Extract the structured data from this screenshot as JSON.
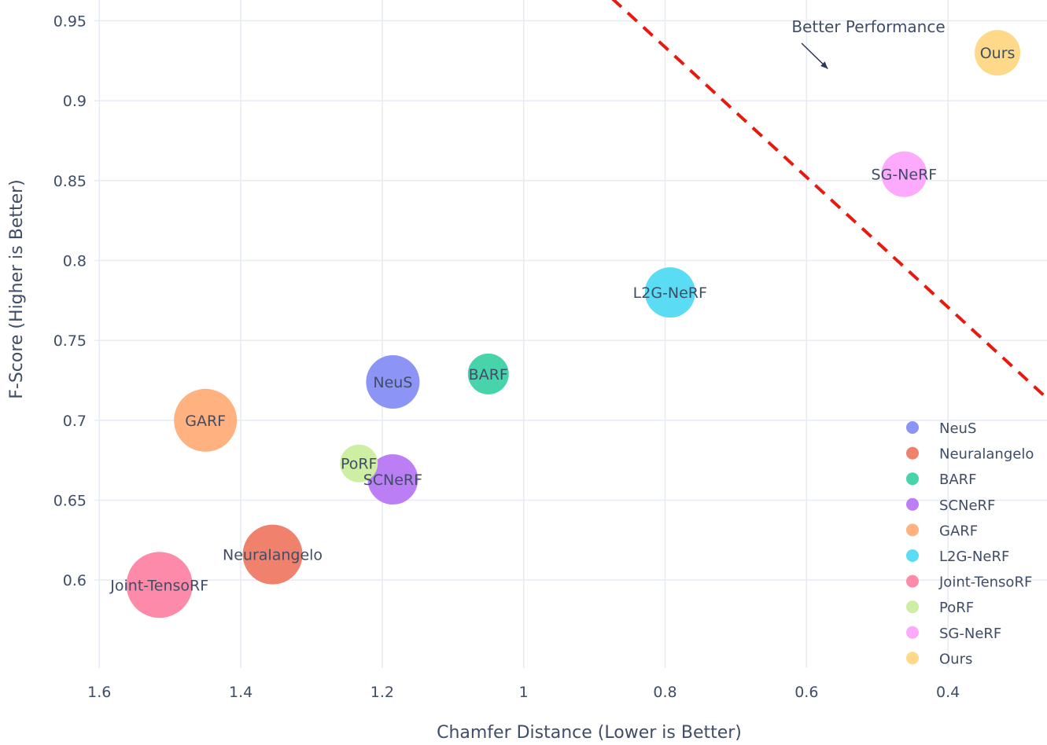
{
  "chart_data": {
    "type": "scatter",
    "xlabel": "Chamfer Distance (Lower is Better)",
    "ylabel": "F-Score (Higher is Better)",
    "xlim": [
      1.607,
      0.26
    ],
    "ylim": [
      0.545,
      0.963
    ],
    "x_reversed": true,
    "grid": true,
    "legend_position": "bottom-right",
    "x_ticks": [
      {
        "value": 1.6,
        "label": "1.6"
      },
      {
        "value": 1.4,
        "label": "1.4"
      },
      {
        "value": 1.2,
        "label": "1.2"
      },
      {
        "value": 1.0,
        "label": "1"
      },
      {
        "value": 0.8,
        "label": "0.8"
      },
      {
        "value": 0.6,
        "label": "0.6"
      },
      {
        "value": 0.4,
        "label": "0.4"
      }
    ],
    "y_ticks": [
      {
        "value": 0.95,
        "label": "0.95"
      },
      {
        "value": 0.9,
        "label": "0.9"
      },
      {
        "value": 0.85,
        "label": "0.85"
      },
      {
        "value": 0.8,
        "label": "0.8"
      },
      {
        "value": 0.75,
        "label": "0.75"
      },
      {
        "value": 0.7,
        "label": "0.7"
      },
      {
        "value": 0.65,
        "label": "0.65"
      },
      {
        "value": 0.6,
        "label": "0.6"
      }
    ],
    "series": [
      {
        "name": "NeuS",
        "x": 1.185,
        "y": 0.724,
        "size": 34,
        "color": "#8c94f5"
      },
      {
        "name": "Neuralangelo",
        "x": 1.355,
        "y": 0.616,
        "size": 38,
        "color": "#ef816d"
      },
      {
        "name": "BARF",
        "x": 1.05,
        "y": 0.729,
        "size": 26,
        "color": "#48d4aa"
      },
      {
        "name": "SCNeRF",
        "x": 1.185,
        "y": 0.663,
        "size": 32,
        "color": "#bb7ef5"
      },
      {
        "name": "GARF",
        "x": 1.45,
        "y": 0.7,
        "size": 40,
        "color": "#ffb17f"
      },
      {
        "name": "L2G-NeRF",
        "x": 0.793,
        "y": 0.78,
        "size": 32,
        "color": "#5adcf5"
      },
      {
        "name": "Joint-TensoRF",
        "x": 1.515,
        "y": 0.597,
        "size": 42,
        "color": "#fc8aa8"
      },
      {
        "name": "PoRF",
        "x": 1.233,
        "y": 0.673,
        "size": 24,
        "color": "#cdeea3"
      },
      {
        "name": "SG-NeRF",
        "x": 0.462,
        "y": 0.854,
        "size": 29,
        "color": "#fdaafd"
      },
      {
        "name": "Ours",
        "x": 0.33,
        "y": 0.93,
        "size": 29,
        "color": "#fed98a"
      }
    ],
    "reference_line": {
      "x": [
        0.875,
        0.263
      ],
      "y": 0.964,
      "y_end": 0.715,
      "color": "#e8190f",
      "style": "dashed"
    },
    "annotation": {
      "text": "Better Performance",
      "x": 0.6,
      "y": 0.95,
      "arrow_to": [
        0.57,
        0.92
      ]
    }
  }
}
